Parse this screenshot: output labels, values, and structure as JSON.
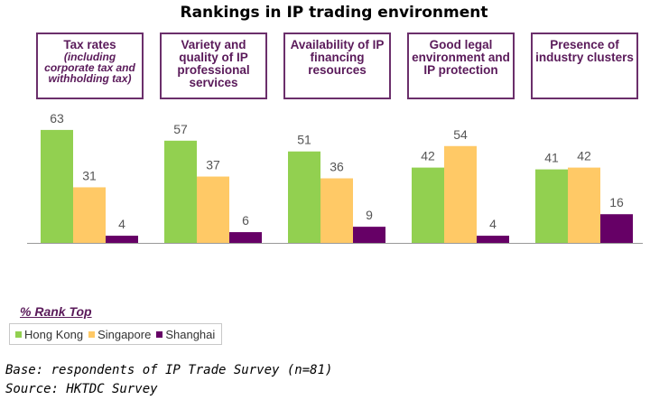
{
  "chart_data": {
    "type": "bar",
    "title": "Rankings in IP trading environment",
    "categories": [
      {
        "label": "Tax rates",
        "sublabel": "(including corporate tax and withholding tax)"
      },
      {
        "label": "Variety and quality of IP professional services",
        "sublabel": ""
      },
      {
        "label": "Availability of IP financing resources",
        "sublabel": ""
      },
      {
        "label": "Good legal environment and IP protection",
        "sublabel": ""
      },
      {
        "label": "Presence of industry clusters",
        "sublabel": ""
      }
    ],
    "series": [
      {
        "name": "Hong Kong",
        "color": "#92d050",
        "values": [
          63,
          57,
          51,
          42,
          41
        ]
      },
      {
        "name": "Singapore",
        "color": "#ffc966",
        "values": [
          31,
          37,
          36,
          54,
          42
        ]
      },
      {
        "name": "Shanghai",
        "color": "#660066",
        "values": [
          4,
          6,
          9,
          4,
          16
        ]
      }
    ],
    "ylim": [
      0,
      70
    ],
    "grid": false,
    "legend_title": "% Rank Top",
    "legend_placement": "bottom-left"
  },
  "footnotes": {
    "base": "Base: respondents of IP Trade Survey (n=81)",
    "source": "Source: HKTDC Survey"
  }
}
